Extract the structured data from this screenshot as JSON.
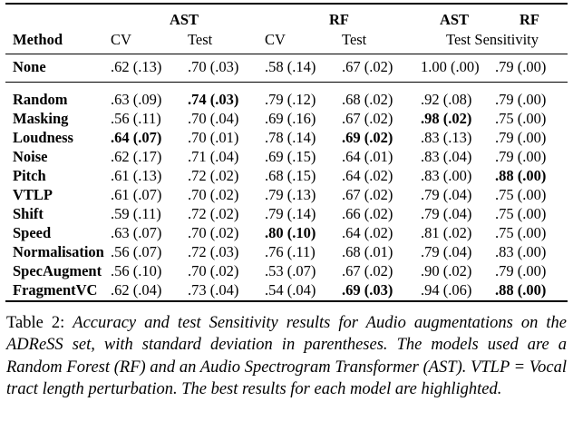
{
  "table": {
    "group_headers": [
      {
        "label": "",
        "span": 1
      },
      {
        "label": "AST",
        "span": 2
      },
      {
        "label": "RF",
        "span": 2
      },
      {
        "label": "AST",
        "span": 1
      },
      {
        "label": "RF",
        "span": 1
      }
    ],
    "column_headers": [
      {
        "label": "Method",
        "span": 1
      },
      {
        "label": "CV",
        "span": 1
      },
      {
        "label": "Test",
        "span": 1
      },
      {
        "label": "CV",
        "span": 1
      },
      {
        "label": "Test",
        "span": 1
      },
      {
        "label": "Test Sensitivity",
        "span": 2
      }
    ],
    "baseline_row": {
      "method": "None",
      "cells": [
        {
          "value": ".62 (.13)",
          "bold": false
        },
        {
          "value": ".70 (.03)",
          "bold": false
        },
        {
          "value": ".58 (.14)",
          "bold": false
        },
        {
          "value": ".67 (.02)",
          "bold": false
        },
        {
          "value": "1.00 (.00)",
          "bold": false
        },
        {
          "value": ".79 (.00)",
          "bold": false
        }
      ]
    },
    "rows": [
      {
        "method": "Random",
        "cells": [
          {
            "value": ".63 (.09)",
            "bold": false
          },
          {
            "value": ".74 (.03)",
            "bold": true
          },
          {
            "value": ".79 (.12)",
            "bold": false
          },
          {
            "value": ".68 (.02)",
            "bold": false
          },
          {
            "value": ".92 (.08)",
            "bold": false
          },
          {
            "value": ".79 (.00)",
            "bold": false
          }
        ]
      },
      {
        "method": "Masking",
        "cells": [
          {
            "value": ".56 (.11)",
            "bold": false
          },
          {
            "value": ".70 (.04)",
            "bold": false
          },
          {
            "value": ".69 (.16)",
            "bold": false
          },
          {
            "value": ".67 (.02)",
            "bold": false
          },
          {
            "value": ".98 (.02)",
            "bold": true
          },
          {
            "value": ".75 (.00)",
            "bold": false
          }
        ]
      },
      {
        "method": "Loudness",
        "cells": [
          {
            "value": ".64 (.07)",
            "bold": true
          },
          {
            "value": ".70 (.01)",
            "bold": false
          },
          {
            "value": ".78 (.14)",
            "bold": false
          },
          {
            "value": ".69 (.02)",
            "bold": true
          },
          {
            "value": ".83 (.13)",
            "bold": false
          },
          {
            "value": ".79 (.00)",
            "bold": false
          }
        ]
      },
      {
        "method": "Noise",
        "cells": [
          {
            "value": ".62 (.17)",
            "bold": false
          },
          {
            "value": ".71 (.04)",
            "bold": false
          },
          {
            "value": ".69 (.15)",
            "bold": false
          },
          {
            "value": ".64 (.01)",
            "bold": false
          },
          {
            "value": ".83 (.04)",
            "bold": false
          },
          {
            "value": ".79 (.00)",
            "bold": false
          }
        ]
      },
      {
        "method": "Pitch",
        "cells": [
          {
            "value": ".61 (.13)",
            "bold": false
          },
          {
            "value": ".72 (.02)",
            "bold": false
          },
          {
            "value": ".68 (.15)",
            "bold": false
          },
          {
            "value": ".64 (.02)",
            "bold": false
          },
          {
            "value": ".83 (.00)",
            "bold": false
          },
          {
            "value": ".88 (.00)",
            "bold": true
          }
        ]
      },
      {
        "method": "VTLP",
        "cells": [
          {
            "value": ".61 (.07)",
            "bold": false
          },
          {
            "value": ".70 (.02)",
            "bold": false
          },
          {
            "value": ".79 (.13)",
            "bold": false
          },
          {
            "value": ".67 (.02)",
            "bold": false
          },
          {
            "value": ".79 (.04)",
            "bold": false
          },
          {
            "value": ".75 (.00)",
            "bold": false
          }
        ]
      },
      {
        "method": "Shift",
        "cells": [
          {
            "value": ".59 (.11)",
            "bold": false
          },
          {
            "value": ".72 (.02)",
            "bold": false
          },
          {
            "value": ".79 (.14)",
            "bold": false
          },
          {
            "value": ".66 (.02)",
            "bold": false
          },
          {
            "value": ".79 (.04)",
            "bold": false
          },
          {
            "value": ".75 (.00)",
            "bold": false
          }
        ]
      },
      {
        "method": "Speed",
        "cells": [
          {
            "value": ".63 (.07)",
            "bold": false
          },
          {
            "value": ".70 (.02)",
            "bold": false
          },
          {
            "value": ".80 (.10)",
            "bold": true
          },
          {
            "value": ".64 (.02)",
            "bold": false
          },
          {
            "value": ".81 (.02)",
            "bold": false
          },
          {
            "value": ".75 (.00)",
            "bold": false
          }
        ]
      },
      {
        "method": "Normalisation",
        "cells": [
          {
            "value": ".56 (.07)",
            "bold": false
          },
          {
            "value": ".72 (.03)",
            "bold": false
          },
          {
            "value": ".76 (.11)",
            "bold": false
          },
          {
            "value": ".68 (.01)",
            "bold": false
          },
          {
            "value": ".79 (.04)",
            "bold": false
          },
          {
            "value": ".83 (.00)",
            "bold": false
          }
        ]
      },
      {
        "method": "SpecAugment",
        "cells": [
          {
            "value": ".56 (.10)",
            "bold": false
          },
          {
            "value": ".70 (.02)",
            "bold": false
          },
          {
            "value": ".53 (.07)",
            "bold": false
          },
          {
            "value": ".67 (.02)",
            "bold": false
          },
          {
            "value": ".90 (.02)",
            "bold": false
          },
          {
            "value": ".79 (.00)",
            "bold": false
          }
        ]
      },
      {
        "method": "FragmentVC",
        "cells": [
          {
            "value": ".62 (.04)",
            "bold": false
          },
          {
            "value": ".73 (.04)",
            "bold": false
          },
          {
            "value": ".54 (.04)",
            "bold": false
          },
          {
            "value": ".69 (.03)",
            "bold": true
          },
          {
            "value": ".94 (.06)",
            "bold": false
          },
          {
            "value": ".88 (.00)",
            "bold": true
          }
        ]
      }
    ]
  },
  "caption": {
    "label": "Table 2: ",
    "text": "Accuracy and test Sensitivity results for Audio augmentations on the ADReSS set, with standard deviation in parentheses. The models used are a Random Forest (RF) and an Audio Spectrogram Transformer (AST). VTLP = Vocal tract length perturbation. The best results for each model are highlighted."
  }
}
